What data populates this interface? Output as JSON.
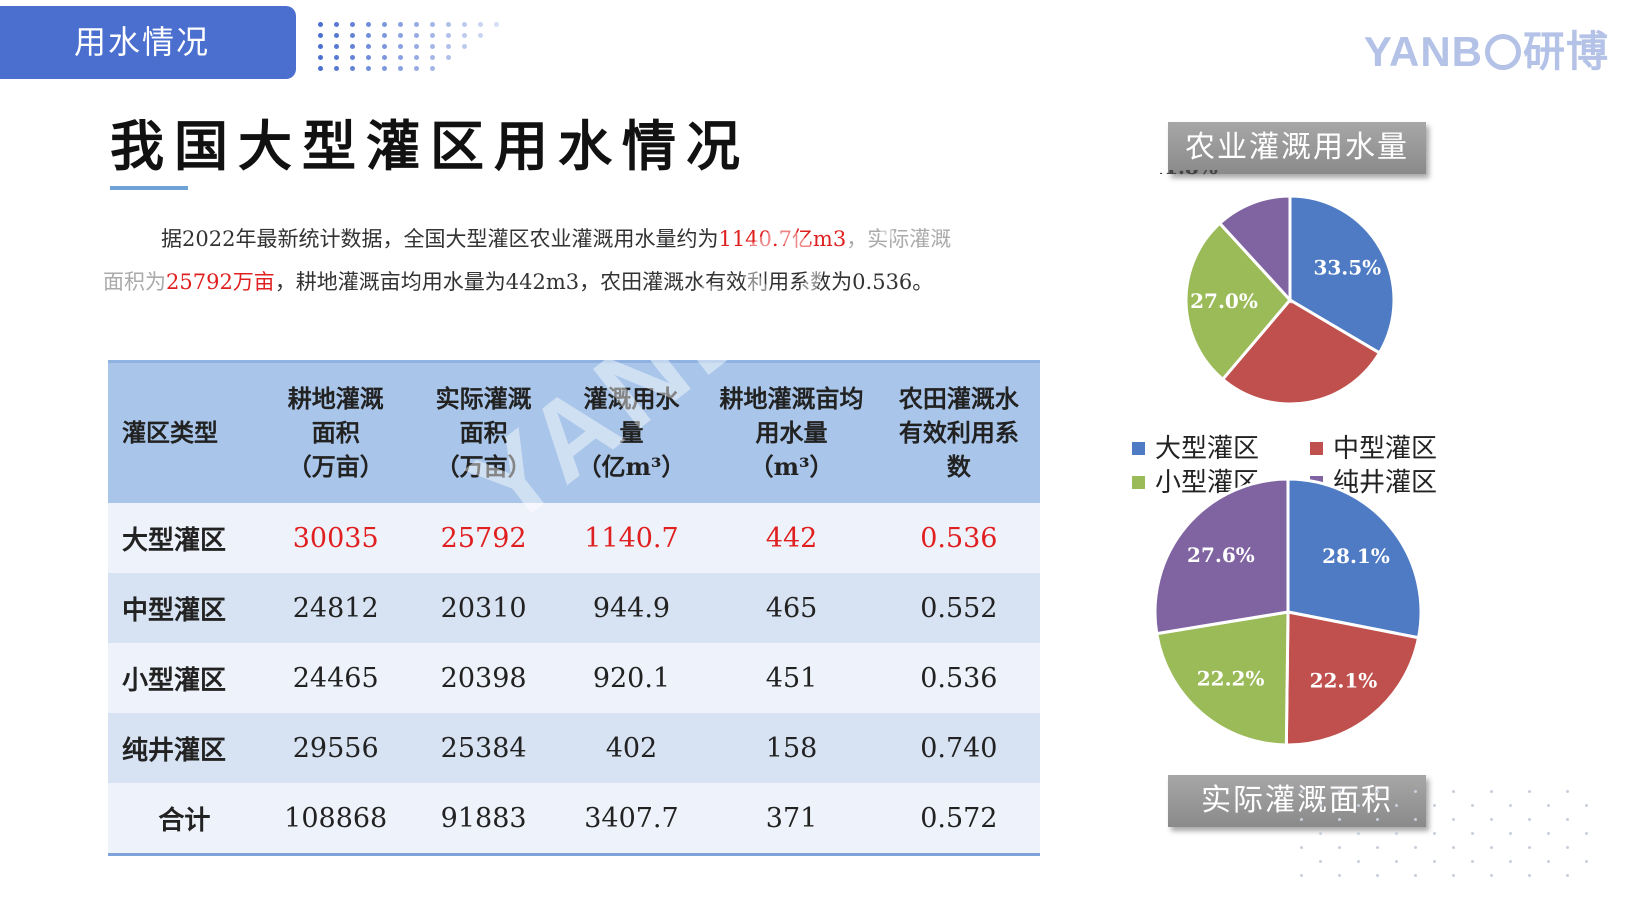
{
  "header": {
    "tab_label": "用水情况",
    "brand": "YANB",
    "brand_suffix": "研博"
  },
  "page_title": "我国大型灌区用水情况",
  "intro": {
    "p1": "据2022年最新统计数据，全国大型灌区农业灌溉用水量约为",
    "v1": "1140.7亿m3",
    "p2": "，实际灌溉面积为",
    "v2": "25792万亩",
    "p3": "，耕地灌溉亩均用水量为442m3，农田灌溉水有效利用系数为0.536。"
  },
  "table": {
    "headers": [
      "灌区类型",
      "耕地灌溉面积（万亩）",
      "实际灌溉面积（万亩）",
      "灌溉用水量（亿m³）",
      "耕地灌溉亩均用水量（m³）",
      "农田灌溉水有效利用系数"
    ],
    "header_lines": [
      [
        "灌区类型"
      ],
      [
        "耕地灌溉",
        "面积",
        "（万亩）"
      ],
      [
        "实际灌溉",
        "面积",
        "（万亩）"
      ],
      [
        "灌溉用水",
        "量",
        "（亿m³）"
      ],
      [
        "耕地灌溉亩均",
        "用水量",
        "（m³）"
      ],
      [
        "农田灌溉水",
        "有效利用系",
        "数"
      ]
    ],
    "rows": [
      [
        "大型灌区",
        "30035",
        "25792",
        "1140.7",
        "442",
        "0.536"
      ],
      [
        "中型灌区",
        "24812",
        "20310",
        "944.9",
        "465",
        "0.552"
      ],
      [
        "小型灌区",
        "24465",
        "20398",
        "920.1",
        "451",
        "0.536"
      ],
      [
        "纯井灌区",
        "29556",
        "25384",
        "402",
        "158",
        "0.740"
      ],
      [
        "合计",
        "108868",
        "91883",
        "3407.7",
        "371",
        "0.572"
      ]
    ]
  },
  "watermark": "YANBO 研博数据",
  "chart_data": [
    {
      "type": "pie",
      "title": "农业灌溉用水量",
      "categories": [
        "大型灌区",
        "中型灌区",
        "小型灌区",
        "纯井灌区"
      ],
      "values": [
        33.5,
        27.7,
        27.0,
        11.8
      ],
      "labels": [
        "33.5%",
        "",
        "27.0%",
        "11.8%"
      ],
      "colors": [
        "#4f7bc4",
        "#c0504d",
        "#9bbb59",
        "#8064a2"
      ]
    },
    {
      "type": "pie",
      "title": "实际灌溉面积",
      "categories": [
        "大型灌区",
        "中型灌区",
        "小型灌区",
        "纯井灌区"
      ],
      "values": [
        28.1,
        22.1,
        22.2,
        27.6
      ],
      "labels": [
        "28.1%",
        "22.1%",
        "22.2%",
        "27.6%"
      ],
      "colors": [
        "#4f7bc4",
        "#c0504d",
        "#9bbb59",
        "#8064a2"
      ]
    }
  ],
  "legend": {
    "items": [
      {
        "label": "大型灌区",
        "color": "#4f7bc4"
      },
      {
        "label": "中型灌区",
        "color": "#c0504d"
      },
      {
        "label": "小型灌区",
        "color": "#9bbb59"
      },
      {
        "label": "纯井灌区",
        "color": "#8064a2"
      }
    ]
  }
}
